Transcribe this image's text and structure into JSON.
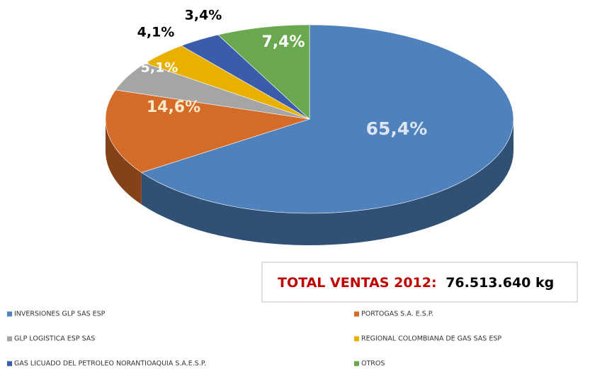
{
  "chart_data": {
    "type": "pie",
    "categories": [
      "INVERSIONES GLP SAS ESP",
      "PORTOGAS S.A. E.S.P.",
      "GLP LOGISTICA ESP SAS",
      "REGIONAL COLOMBIANA DE GAS SAS ESP",
      "GAS LICUADO  DEL PETROLEO  NORANTIOAQUIA  S.A.E.S.P.",
      "OTROS"
    ],
    "values": [
      65.4,
      14.6,
      5.1,
      4.1,
      3.4,
      7.4
    ],
    "value_labels": [
      "65,4%",
      "14,6%",
      "5,1%",
      "4,1%",
      "3,4%",
      "7,4%"
    ],
    "colors": [
      "#4f81bd",
      "#d46b28",
      "#a5a5a5",
      "#e8b100",
      "#3a5caa",
      "#6aa84f"
    ],
    "label_colors": [
      "#dce6f2",
      "#fde9c8",
      "#ffffff",
      "#000000",
      "#000000",
      "#ffffff"
    ],
    "annotation": {
      "label": "TOTAL VENTAS 2012:",
      "value": "76.513.640 kg",
      "label_color": "#c00000"
    }
  }
}
